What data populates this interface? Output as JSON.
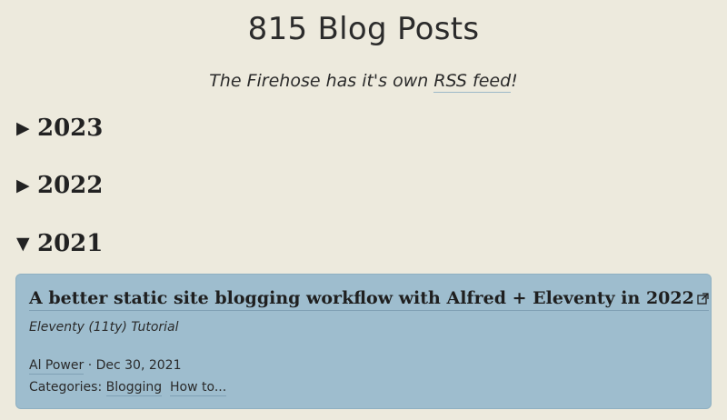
{
  "header": {
    "title": "815 Blog Posts",
    "subtitle_prefix": "The Firehose has it's own ",
    "subtitle_link": "RSS feed",
    "subtitle_suffix": "!"
  },
  "years": [
    {
      "label": "2023",
      "expanded": false,
      "toggle_glyph": "▶"
    },
    {
      "label": "2022",
      "expanded": false,
      "toggle_glyph": "▶"
    },
    {
      "label": "2021",
      "expanded": true,
      "toggle_glyph": "▼"
    }
  ],
  "post": {
    "title": "A better static site blogging workflow with Alfred + Eleventy in 2022",
    "external_icon": "external-link-icon",
    "subtitle": "Eleventy (11ty) Tutorial",
    "author": "Al Power",
    "separator": " · ",
    "date": "Dec 30, 2021",
    "categories_label": "Categories: ",
    "categories": [
      "Blogging",
      "How to..."
    ]
  },
  "colors": {
    "background": "#edeadd",
    "card": "#9ebdce",
    "underline": "#7fa0b4"
  }
}
